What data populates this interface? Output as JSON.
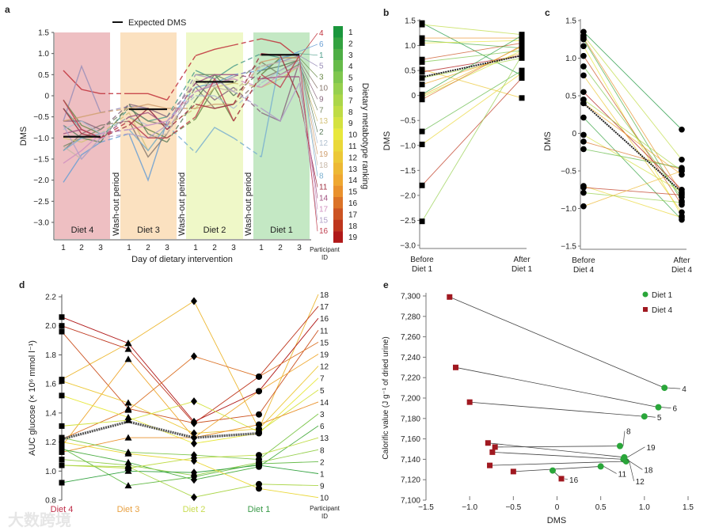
{
  "panels": {
    "a": "a",
    "b": "b",
    "c": "c",
    "d": "d",
    "e": "e"
  },
  "watermark": "大数跨境",
  "chart_data": [
    {
      "id": "a",
      "type": "line",
      "legend": "Expected DMS",
      "ylabel": "DMS",
      "xlabel": "Day of dietary intervention",
      "ylim": [
        -3.3,
        1.5
      ],
      "yticks": [
        "1.5",
        "1.0",
        "0.5",
        "0",
        "-0.5",
        "-1.0",
        "-1.5",
        "-2.0",
        "-2.5",
        "-3.0"
      ],
      "ytick_values": [
        1.5,
        1.0,
        0.5,
        0,
        -0.5,
        -1.0,
        -1.5,
        -2.0,
        -2.5,
        -3.0
      ],
      "blocks": [
        {
          "label": "Diet 4",
          "color": "#eebfc2",
          "expected": -0.97
        },
        {
          "label": "Diet 3",
          "color": "#fbe1c0",
          "expected": -0.32
        },
        {
          "label": "Diet 2",
          "color": "#eff8c8",
          "expected": 0.33
        },
        {
          "label": "Diet 1",
          "color": "#c4e8c4",
          "expected": 0.97
        }
      ],
      "washout": "Wash-out period",
      "days": [
        "1",
        "2",
        "3"
      ],
      "id_header": "Participant ID",
      "colorbar_title": "Dietary metabotype ranking",
      "colorbar_ranks": [
        "1",
        "2",
        "3",
        "4",
        "5",
        "6",
        "7",
        "8",
        "9",
        "10",
        "11",
        "12",
        "13",
        "14",
        "15",
        "16",
        "17",
        "18",
        "19"
      ],
      "series": [
        {
          "id": "4",
          "color": "#c0303a",
          "values": [
            0.6,
            0.15,
            0.05,
            0.05,
            0.05,
            -0.1,
            0.95,
            1.1,
            1.2,
            1.35,
            1.25,
            0.9
          ]
        },
        {
          "id": "6",
          "color": "#6a9fd4",
          "values": [
            -2.05,
            -1.4,
            -1.1,
            -0.9,
            -2.0,
            -0.6,
            0.2,
            0.3,
            0.5,
            0.6,
            0.85,
            1.05
          ]
        },
        {
          "id": "1",
          "color": "#4f9e8c",
          "values": [
            -0.3,
            -0.8,
            -1.0,
            -0.3,
            -0.6,
            -0.5,
            0.6,
            0.4,
            0.7,
            1.0,
            0.9,
            1.0
          ]
        },
        {
          "id": "5",
          "color": "#9a8fb8",
          "values": [
            -0.6,
            0.7,
            -0.4,
            -0.25,
            -0.3,
            -0.8,
            0.1,
            0.25,
            0.45,
            0.7,
            0.8,
            0.95
          ]
        },
        {
          "id": "3",
          "color": "#6b8a4a",
          "values": [
            -0.1,
            -0.7,
            -0.9,
            -0.5,
            -0.8,
            -1.0,
            -0.55,
            0.2,
            -0.6,
            0.5,
            0.9,
            0.9
          ]
        },
        {
          "id": "10",
          "color": "#8a7a70",
          "values": [
            -1.3,
            -0.9,
            -0.7,
            -0.6,
            -1.45,
            -0.9,
            0.2,
            -0.3,
            -0.2,
            0.4,
            0.6,
            0.85
          ]
        },
        {
          "id": "9",
          "color": "#8a6a80",
          "values": [
            -0.6,
            -0.6,
            -0.8,
            -0.2,
            -0.3,
            -0.5,
            0.3,
            -0.1,
            0.2,
            -0.4,
            -0.6,
            0.8
          ]
        },
        {
          "id": "7",
          "color": "#7a8a6a",
          "values": [
            -1.2,
            -1.0,
            -0.8,
            -0.3,
            -0.6,
            -0.7,
            0.5,
            0.5,
            0.3,
            0.8,
            0.5,
            0.75
          ]
        },
        {
          "id": "13",
          "color": "#d3c27a",
          "values": [
            -1.0,
            -1.1,
            -0.9,
            -0.4,
            -1.3,
            -0.7,
            -0.3,
            0.2,
            0.3,
            0.2,
            0.4,
            0.7
          ]
        },
        {
          "id": "2",
          "color": "#5f7f5f",
          "values": [
            -0.7,
            -1.0,
            -1.1,
            -0.2,
            -0.9,
            -1.1,
            -0.1,
            0.5,
            0.0,
            0.6,
            0.7,
            0.85
          ]
        },
        {
          "id": "12",
          "color": "#b0c0d0",
          "values": [
            -0.8,
            -0.6,
            -0.9,
            -0.5,
            -0.7,
            -0.6,
            0.0,
            0.0,
            -0.3,
            0.3,
            0.6,
            0.8
          ]
        },
        {
          "id": "19",
          "color": "#d0a070",
          "values": [
            -0.6,
            -0.5,
            -0.4,
            -0.3,
            -0.2,
            -0.3,
            -0.3,
            -0.2,
            -0.2,
            0.8,
            0.9,
            0.9
          ]
        },
        {
          "id": "18",
          "color": "#c8b8a8",
          "values": [
            -1.2,
            -1.5,
            -1.0,
            -0.6,
            -1.0,
            -0.9,
            0.4,
            0.2,
            0.1,
            0.7,
            0.8,
            0.85
          ]
        },
        {
          "id": "8",
          "color": "#7ab0d0",
          "values": [
            -1.3,
            -1.0,
            -0.9,
            -0.8,
            -1.3,
            -0.7,
            -1.35,
            -0.75,
            -1.0,
            -1.45,
            0.9,
            1.0
          ]
        },
        {
          "id": "11",
          "color": "#a03040",
          "values": [
            -0.3,
            -0.9,
            -1.0,
            -0.7,
            -0.3,
            -0.8,
            -0.2,
            -0.3,
            -0.2,
            1.0,
            0.95,
            -0.05
          ]
        },
        {
          "id": "14",
          "color": "#a05080",
          "values": [
            -0.9,
            -0.8,
            -1.0,
            -0.5,
            -0.4,
            -0.7,
            0.3,
            0.5,
            0.5,
            0.4,
            0.45,
            0.45
          ]
        },
        {
          "id": "17",
          "color": "#d090c0",
          "values": [
            -1.6,
            -1.3,
            -0.9,
            -0.8,
            -0.7,
            -0.6,
            0.1,
            0.3,
            0.4,
            0.2,
            0.5,
            0.7
          ]
        },
        {
          "id": "15",
          "color": "#b0a0c8",
          "values": [
            -0.7,
            -1.5,
            -1.0,
            -0.9,
            -1.0,
            -0.7,
            0.5,
            0.4,
            0.1,
            -0.3,
            -0.6,
            0.3
          ]
        },
        {
          "id": "16",
          "color": "#c04050",
          "values": [
            -0.1,
            -0.8,
            -1.0,
            -0.6,
            -1.0,
            -1.0,
            -0.5,
            0.4,
            -0.6,
            0.5,
            0.2,
            0.95
          ]
        }
      ]
    },
    {
      "id": "b",
      "type": "line",
      "ylabel": "DMS",
      "ylim": [
        -3.0,
        1.5
      ],
      "yticks": [
        "1.5",
        "1.0",
        "0.5",
        "0",
        "-0.5",
        "-1.0",
        "-1.5",
        "-2.0",
        "-2.5",
        "-3.0"
      ],
      "ytick_values": [
        1.5,
        1.0,
        0.5,
        0,
        -0.5,
        -1.0,
        -1.5,
        -2.0,
        -2.5,
        -3.0
      ],
      "categories": [
        [
          "Before",
          "Diet 1"
        ],
        [
          "After",
          "Diet 1"
        ]
      ],
      "before": [
        1.45,
        1.42,
        1.15,
        1.1,
        1.05,
        0.72,
        0.67,
        0.52,
        0.47,
        0.35,
        0.22,
        0.02,
        -0.03,
        -0.08,
        -0.72,
        -0.98,
        -1.8,
        -2.52,
        0.0
      ],
      "after": [
        0.4,
        1.22,
        1.15,
        0.95,
        1.1,
        1.05,
        0.9,
        -0.05,
        0.8,
        0.75,
        0.85,
        1.2,
        0.9,
        1.0,
        0.5,
        0.45,
        0.35,
        0.8,
        0.98
      ],
      "mean": [
        0.37,
        0.8
      ]
    },
    {
      "id": "c",
      "type": "line",
      "ylabel": "DMS",
      "ylim": [
        -1.5,
        1.5
      ],
      "yticks": [
        "1.5",
        "1.0",
        "0.5",
        "0",
        "-0.5",
        "-1.0",
        "-1.5"
      ],
      "ytick_values": [
        1.5,
        1.0,
        0.5,
        0,
        -0.5,
        -1.0,
        -1.5
      ],
      "categories": [
        [
          "Before",
          "Diet 4"
        ],
        [
          "After",
          "Diet 4"
        ]
      ],
      "before": [
        1.35,
        1.3,
        1.27,
        1.25,
        1.16,
        1.03,
        0.89,
        0.77,
        0.55,
        0.45,
        0.4,
        0.21,
        -0.02,
        -0.11,
        -0.21,
        -0.7,
        -0.72,
        -0.79,
        -0.97
      ],
      "after": [
        0.05,
        -0.35,
        -0.8,
        -0.9,
        -1.1,
        -0.95,
        -0.85,
        -1.05,
        -0.75,
        -0.5,
        -0.55,
        -1.15,
        -0.78,
        -0.48,
        -0.46,
        -1.12,
        -0.82,
        -0.92,
        -0.5
      ],
      "mean": [
        0.4,
        -0.78
      ]
    },
    {
      "id": "d",
      "type": "line",
      "ylabel": "AUC glucose (× 10⁶ mmol l⁻¹)",
      "ylim": [
        0.8,
        2.2
      ],
      "yticks": [
        "2.2",
        "2.0",
        "1.8",
        "1.6",
        "1.4",
        "1.2",
        "1.0",
        "0.8"
      ],
      "ytick_values": [
        2.2,
        2.0,
        1.8,
        1.6,
        1.4,
        1.2,
        1.0,
        0.8
      ],
      "categories": [
        "Diet 4",
        "Diet 3",
        "Diet 2",
        "Diet 1"
      ],
      "category_colors": [
        "#c0304a",
        "#e8a040",
        "#c8dc50",
        "#3a9a48"
      ],
      "id_header": "Participant ID",
      "series": [
        {
          "id": "18",
          "rank": 13,
          "values": [
            1.63,
            1.88,
            2.17,
            1.29
          ]
        },
        {
          "id": "17",
          "rank": 18,
          "values": [
            2.0,
            1.84,
            1.33,
            1.65
          ]
        },
        {
          "id": "16",
          "rank": 19,
          "values": [
            2.06,
            1.88,
            1.34,
            1.55
          ]
        },
        {
          "id": "11",
          "rank": 17,
          "values": [
            1.96,
            1.43,
            1.33,
            1.39
          ]
        },
        {
          "id": "15",
          "rank": 16,
          "values": [
            1.22,
            1.42,
            1.79,
            1.65
          ]
        },
        {
          "id": "19",
          "rank": 14,
          "values": [
            1.17,
            1.77,
            1.23,
            1.55
          ]
        },
        {
          "id": "12",
          "rank": 12,
          "values": [
            1.62,
            1.47,
            1.26,
            1.29
          ]
        },
        {
          "id": "7",
          "rank": 10,
          "values": [
            1.52,
            1.37,
            1.19,
            1.26
          ]
        },
        {
          "id": "5",
          "rank": 9,
          "values": [
            1.31,
            1.35,
            1.48,
            1.27
          ]
        },
        {
          "id": "14",
          "rank": 15,
          "values": [
            1.13,
            1.23,
            1.23,
            1.32
          ]
        },
        {
          "id": "3",
          "rank": 5,
          "values": [
            1.23,
            1.13,
            1.11,
            1.08
          ]
        },
        {
          "id": "6",
          "rank": 3,
          "values": [
            1.15,
            1.06,
            0.94,
            1.03
          ]
        },
        {
          "id": "13",
          "rank": 8,
          "values": [
            1.04,
            1.02,
            1.09,
            1.11
          ]
        },
        {
          "id": "8",
          "rank": 6,
          "values": [
            1.08,
            1.04,
            0.97,
            1.06
          ]
        },
        {
          "id": "2",
          "rank": 4,
          "values": [
            1.16,
            0.9,
            0.96,
            1.05
          ]
        },
        {
          "id": "1",
          "rank": 2,
          "values": [
            0.92,
            1.0,
            0.99,
            1.04
          ]
        },
        {
          "id": "9",
          "rank": 7,
          "values": [
            1.04,
            1.03,
            0.82,
            0.91
          ]
        },
        {
          "id": "10",
          "rank": 11,
          "values": [
            1.2,
            1.12,
            1.07,
            0.88
          ]
        }
      ],
      "mean": [
        1.22,
        1.34,
        1.23,
        1.26
      ]
    },
    {
      "id": "e",
      "type": "scatter",
      "xlabel": "DMS",
      "ylabel": "Calorific value (J g⁻¹ of dried urine)",
      "xlim": [
        -1.5,
        1.5
      ],
      "ylim": [
        7100,
        7300
      ],
      "xticks": [
        "-1.5",
        "-1.0",
        "-0.5",
        "0",
        "0.5",
        "1.0",
        "1.5"
      ],
      "xtick_values": [
        -1.5,
        -1.0,
        -0.5,
        0,
        0.5,
        1.0,
        1.5
      ],
      "yticks": [
        "7,300",
        "7,280",
        "7,260",
        "7,240",
        "7,220",
        "7,200",
        "7,180",
        "7,160",
        "7,140",
        "7,120",
        "7,100"
      ],
      "ytick_values": [
        7300,
        7280,
        7260,
        7240,
        7220,
        7200,
        7180,
        7160,
        7140,
        7120,
        7100
      ],
      "legend": [
        {
          "label": "Diet 1",
          "color": "#2aa63a",
          "marker": "circle"
        },
        {
          "label": "Diet 4",
          "color": "#a01820",
          "marker": "square"
        }
      ],
      "legend_position": "top-right",
      "pairs": [
        {
          "id": "4",
          "diet4": [
            -1.23,
            7299
          ],
          "diet1": [
            1.23,
            7210
          ]
        },
        {
          "id": "6",
          "diet4": [
            -1.16,
            7230
          ],
          "diet1": [
            1.16,
            7191
          ]
        },
        {
          "id": "5",
          "diet4": [
            -1.0,
            7196
          ],
          "diet1": [
            1.0,
            7182
          ]
        },
        {
          "id": "8",
          "diet4": [
            -0.71,
            7152
          ],
          "diet1": [
            0.72,
            7153
          ]
        },
        {
          "id": "19",
          "diet4": [
            -0.79,
            7156
          ],
          "diet1": [
            0.77,
            7142
          ]
        },
        {
          "id": "18",
          "diet4": [
            -0.74,
            7147
          ],
          "diet1": [
            0.76,
            7140
          ]
        },
        {
          "id": "12",
          "diet4": [
            -0.77,
            7134
          ],
          "diet1": [
            0.79,
            7138
          ]
        },
        {
          "id": "11",
          "diet4": [
            -0.5,
            7128
          ],
          "diet1": [
            0.5,
            7133
          ]
        },
        {
          "id": "16",
          "diet4": [
            0.05,
            7121
          ],
          "diet1": [
            -0.05,
            7129
          ]
        }
      ]
    }
  ]
}
